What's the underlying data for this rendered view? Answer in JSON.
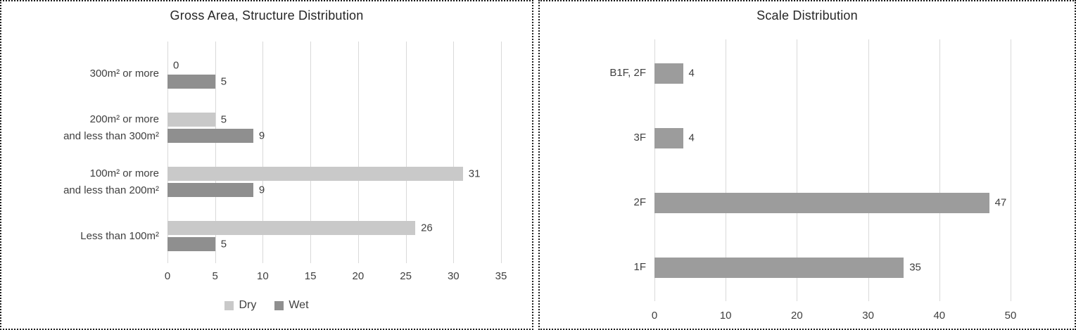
{
  "colors": {
    "dry": "#c9c9c9",
    "wet": "#8f8f8f",
    "single": "#9c9c9c",
    "gridline": "#d9d9d9",
    "text": "#3f3f3f",
    "title": "#262626",
    "border": "#1f1f1f"
  },
  "chart_data": [
    {
      "type": "bar",
      "orientation": "horizontal",
      "title": "Gross Area, Structure  Distribution",
      "categories": [
        "300m² or more",
        "200m² or more\nand less than 300m²",
        "100m² or more\nand less than 200m²",
        "Less than 100m²"
      ],
      "series": [
        {
          "name": "Dry",
          "color": "#c9c9c9",
          "values": [
            0,
            5,
            31,
            26
          ]
        },
        {
          "name": "Wet",
          "color": "#8f8f8f",
          "values": [
            5,
            9,
            9,
            5
          ]
        }
      ],
      "x_ticks": [
        0,
        5,
        10,
        15,
        20,
        25,
        30,
        35
      ],
      "xlim": [
        0,
        35
      ],
      "grid": true,
      "legend_position": "bottom",
      "data_labels": true
    },
    {
      "type": "bar",
      "orientation": "horizontal",
      "title": "Scale Distribution",
      "categories": [
        "B1F, 2F",
        "3F",
        "2F",
        "1F"
      ],
      "series": [
        {
          "color": "#9c9c9c",
          "values": [
            4,
            4,
            47,
            35
          ]
        }
      ],
      "x_ticks": [
        0,
        10,
        20,
        30,
        40,
        50
      ],
      "xlim": [
        0,
        50
      ],
      "grid": true,
      "legend_position": "none",
      "data_labels": true
    }
  ]
}
